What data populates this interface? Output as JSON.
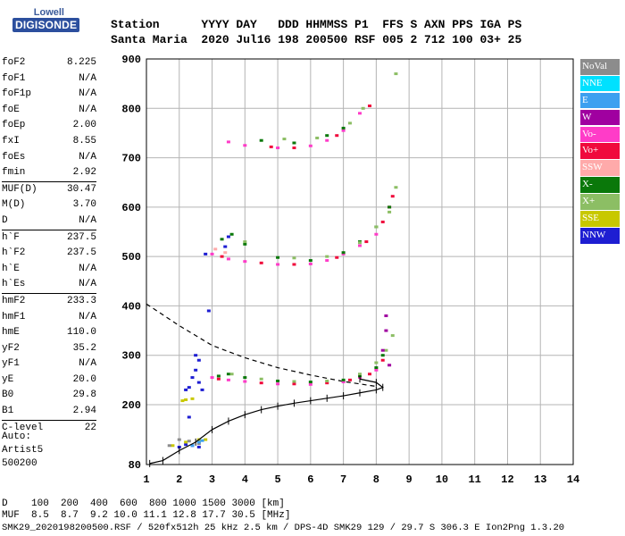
{
  "logo": {
    "top": "Lowell",
    "main": "DIGISONDE"
  },
  "header": {
    "line1": "Station      YYYY DAY   DDD HHMMSS P1  FFS S AXN PPS IGA PS",
    "line2": "Santa Maria  2020 Jul16 198 200500 RSF 005 2 712 100 03+ 25"
  },
  "params": [
    {
      "label": "foF2",
      "value": "8.225"
    },
    {
      "label": "foF1",
      "value": "N/A"
    },
    {
      "label": "foF1p",
      "value": "N/A"
    },
    {
      "label": "foE",
      "value": "N/A"
    },
    {
      "label": "foEp",
      "value": "2.00"
    },
    {
      "label": "fxI",
      "value": "8.55"
    },
    {
      "label": "foEs",
      "value": "N/A"
    },
    {
      "label": "fmin",
      "value": "2.92"
    },
    {
      "label": "MUF(D)",
      "value": "30.47",
      "sep": true
    },
    {
      "label": "M(D)",
      "value": "3.70"
    },
    {
      "label": "D",
      "value": "N/A"
    },
    {
      "label": "h`F",
      "value": "237.5",
      "sep": true
    },
    {
      "label": "h`F2",
      "value": "237.5"
    },
    {
      "label": "h`E",
      "value": "N/A"
    },
    {
      "label": "h`Es",
      "value": "N/A"
    },
    {
      "label": "hmF2",
      "value": "233.3",
      "sep": true
    },
    {
      "label": "hmF1",
      "value": "N/A"
    },
    {
      "label": "hmE",
      "value": "110.0"
    },
    {
      "label": "yF2",
      "value": "35.2"
    },
    {
      "label": "yF1",
      "value": "N/A"
    },
    {
      "label": "yE",
      "value": "20.0"
    },
    {
      "label": "B0",
      "value": "29.8"
    },
    {
      "label": "B1",
      "value": "2.94"
    },
    {
      "label": "C-level",
      "value": "22",
      "sep": true
    }
  ],
  "auto": {
    "line1": "Auto:",
    "line2": "Artist5",
    "line3": "500200"
  },
  "legend": [
    {
      "label": "NoVal",
      "color": "#8c8c8c"
    },
    {
      "label": "NNE",
      "color": "#00e1ff"
    },
    {
      "label": "E",
      "color": "#3ca0f0"
    },
    {
      "label": "W",
      "color": "#a000a0"
    },
    {
      "label": "Vo-",
      "color": "#ff3cc8"
    },
    {
      "label": "Vo+",
      "color": "#f00a3c"
    },
    {
      "label": "SSW",
      "color": "#ffaaaa"
    },
    {
      "label": "X-",
      "color": "#0a780a"
    },
    {
      "label": "X+",
      "color": "#8cbe64"
    },
    {
      "label": "SSE",
      "color": "#c8c800"
    },
    {
      "label": "NNW",
      "color": "#1e1ed2"
    }
  ],
  "footer": {
    "line1": "D    100  200  400  600  800 1000 1500 3000 [km]",
    "line2": "MUF  8.5  8.7  9.2 10.0 11.1 12.8 17.7 30.5 [MHz]",
    "line3": "SMK29_2020198200500.RSF / 520fx512h 25 kHz 2.5 km / DPS-4D SMK29 129 / 29.7 S 306.3 E Ion2Png 1.3.20"
  },
  "chart_data": {
    "type": "scatter",
    "xlim": [
      1,
      14
    ],
    "ylim": [
      80,
      900
    ],
    "xticks": [
      1,
      2,
      3,
      4,
      5,
      6,
      7,
      8,
      9,
      10,
      11,
      12,
      13,
      14
    ],
    "yticks": [
      80,
      200,
      300,
      400,
      500,
      600,
      700,
      800,
      900
    ],
    "grid": true,
    "series": [
      {
        "name": "Vo-",
        "color": "#ff3cc8",
        "points": [
          [
            3.0,
            255
          ],
          [
            3.5,
            250
          ],
          [
            4.0,
            247
          ],
          [
            5.0,
            242
          ],
          [
            6.0,
            241
          ],
          [
            7.0,
            246
          ],
          [
            7.5,
            255
          ],
          [
            8.0,
            270
          ],
          [
            3.0,
            505
          ],
          [
            3.5,
            495
          ],
          [
            4.0,
            490
          ],
          [
            5.0,
            484
          ],
          [
            6.0,
            485
          ],
          [
            6.5,
            492
          ],
          [
            7.0,
            505
          ],
          [
            7.5,
            522
          ],
          [
            8.0,
            545
          ],
          [
            3.5,
            732
          ],
          [
            4.0,
            725
          ],
          [
            5.0,
            720
          ],
          [
            6.0,
            724
          ],
          [
            6.5,
            735
          ],
          [
            7.0,
            755
          ],
          [
            7.5,
            790
          ]
        ]
      },
      {
        "name": "Vo+",
        "color": "#f00a3c",
        "points": [
          [
            3.2,
            252
          ],
          [
            4.5,
            244
          ],
          [
            5.5,
            242
          ],
          [
            6.5,
            244
          ],
          [
            7.2,
            250
          ],
          [
            7.8,
            262
          ],
          [
            8.2,
            290
          ],
          [
            3.3,
            500
          ],
          [
            4.5,
            487
          ],
          [
            5.5,
            484
          ],
          [
            6.8,
            498
          ],
          [
            7.7,
            530
          ],
          [
            8.2,
            570
          ],
          [
            8.4,
            600
          ],
          [
            8.5,
            622
          ],
          [
            4.8,
            722
          ],
          [
            5.5,
            720
          ],
          [
            6.8,
            745
          ],
          [
            7.8,
            805
          ]
        ]
      },
      {
        "name": "X-",
        "color": "#0a780a",
        "points": [
          [
            3.2,
            258
          ],
          [
            3.5,
            262
          ],
          [
            4.0,
            255
          ],
          [
            5.0,
            248
          ],
          [
            6.0,
            246
          ],
          [
            7.0,
            250
          ],
          [
            7.5,
            258
          ],
          [
            8.0,
            275
          ],
          [
            8.2,
            300
          ],
          [
            3.3,
            535
          ],
          [
            3.6,
            545
          ],
          [
            4.0,
            525
          ],
          [
            5.0,
            498
          ],
          [
            6.0,
            492
          ],
          [
            7.0,
            508
          ],
          [
            7.5,
            530
          ],
          [
            8.0,
            560
          ],
          [
            8.4,
            600
          ],
          [
            4.5,
            735
          ],
          [
            5.5,
            730
          ],
          [
            6.5,
            745
          ],
          [
            7.0,
            760
          ]
        ]
      },
      {
        "name": "X+",
        "color": "#8cbe64",
        "points": [
          [
            3.6,
            262
          ],
          [
            4.5,
            252
          ],
          [
            5.5,
            247
          ],
          [
            6.5,
            248
          ],
          [
            7.5,
            262
          ],
          [
            8.0,
            285
          ],
          [
            8.3,
            310
          ],
          [
            8.5,
            340
          ],
          [
            4.0,
            530
          ],
          [
            5.5,
            497
          ],
          [
            6.5,
            500
          ],
          [
            7.5,
            528
          ],
          [
            8.0,
            560
          ],
          [
            8.4,
            590
          ],
          [
            8.6,
            640
          ],
          [
            8.6,
            870
          ],
          [
            5.2,
            738
          ],
          [
            6.2,
            740
          ],
          [
            7.2,
            770
          ],
          [
            7.6,
            800
          ]
        ]
      },
      {
        "name": "NNW",
        "color": "#1e1ed2",
        "points": [
          [
            2.3,
            235
          ],
          [
            2.4,
            255
          ],
          [
            2.5,
            270
          ],
          [
            2.6,
            290
          ],
          [
            2.6,
            245
          ],
          [
            2.5,
            300
          ],
          [
            2.7,
            230
          ],
          [
            2.2,
            230
          ],
          [
            2.0,
            115
          ],
          [
            2.2,
            120
          ],
          [
            2.4,
            118
          ],
          [
            2.6,
            115
          ],
          [
            2.3,
            175
          ],
          [
            3.4,
            520
          ],
          [
            3.5,
            540
          ],
          [
            2.8,
            505
          ],
          [
            2.9,
            390
          ]
        ]
      },
      {
        "name": "SSE",
        "color": "#c8c800",
        "points": [
          [
            2.1,
            208
          ],
          [
            2.2,
            210
          ],
          [
            2.4,
            212
          ],
          [
            2.6,
            130
          ],
          [
            2.8,
            130
          ],
          [
            2.2,
            125
          ],
          [
            1.8,
            118
          ]
        ]
      },
      {
        "name": "NoVal",
        "color": "#8c8c8c",
        "points": [
          [
            2.0,
            130
          ],
          [
            2.3,
            127
          ],
          [
            2.6,
            122
          ],
          [
            1.7,
            118
          ]
        ]
      },
      {
        "name": "E",
        "color": "#3ca0f0",
        "points": [
          [
            2.6,
            125
          ],
          [
            2.4,
            118
          ],
          [
            2.7,
            128
          ]
        ]
      },
      {
        "name": "W",
        "color": "#a000a0",
        "points": [
          [
            8.2,
            310
          ],
          [
            8.3,
            350
          ],
          [
            8.3,
            380
          ],
          [
            8.4,
            280
          ]
        ]
      },
      {
        "name": "SSW",
        "color": "#ffaaaa",
        "points": [
          [
            3.1,
            515
          ],
          [
            3.4,
            508
          ]
        ]
      }
    ],
    "profile": [
      [
        1.1,
        82
      ],
      [
        1.5,
        88
      ],
      [
        2.0,
        108
      ],
      [
        2.5,
        125
      ],
      [
        3.0,
        150
      ],
      [
        3.5,
        167
      ],
      [
        4.0,
        180
      ],
      [
        4.5,
        190
      ],
      [
        5.0,
        197
      ],
      [
        5.5,
        203
      ],
      [
        6.0,
        208
      ],
      [
        6.5,
        213
      ],
      [
        7.0,
        218
      ],
      [
        7.5,
        224
      ],
      [
        8.0,
        230
      ],
      [
        8.2,
        235
      ],
      [
        8.0,
        245
      ],
      [
        7.5,
        252
      ]
    ],
    "muf_curve": [
      [
        1.0,
        404
      ],
      [
        2.0,
        360
      ],
      [
        3.0,
        320
      ],
      [
        4.0,
        295
      ],
      [
        5.0,
        275
      ],
      [
        6.0,
        260
      ],
      [
        7.0,
        247
      ],
      [
        7.6,
        241
      ],
      [
        8.0,
        237
      ]
    ]
  }
}
